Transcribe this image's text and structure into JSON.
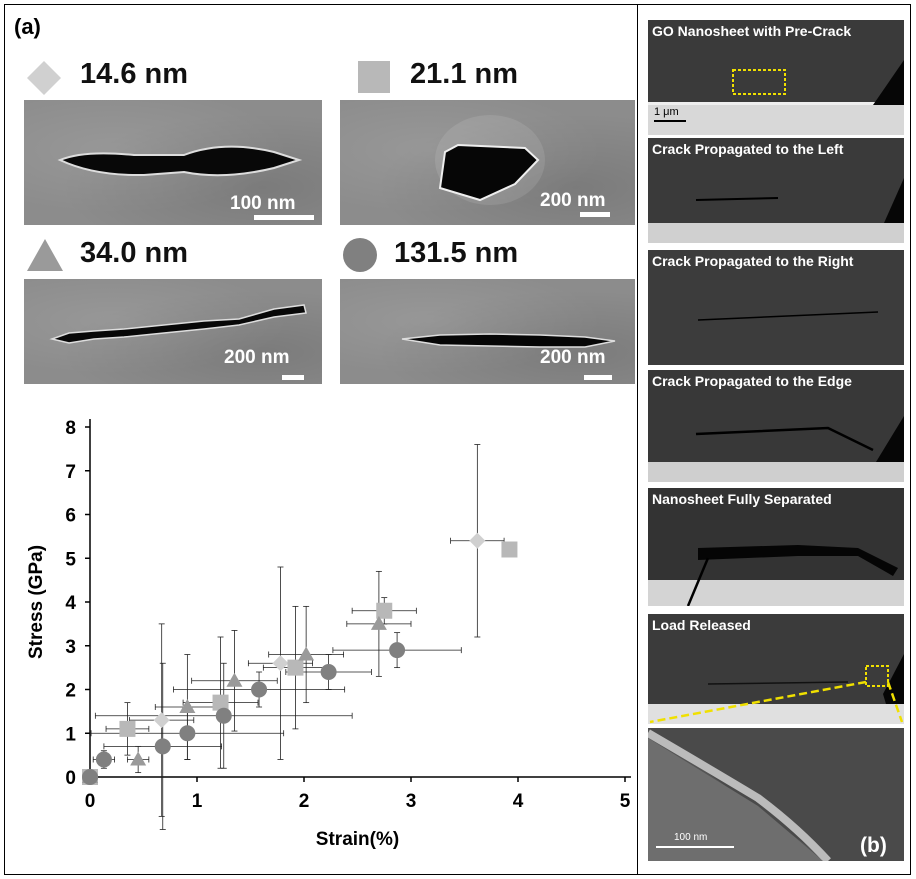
{
  "panel_a": {
    "label": "(a)",
    "images": [
      {
        "marker": "diamond",
        "thickness": "14.6 nm",
        "scale": "100 nm"
      },
      {
        "marker": "square",
        "thickness": "21.1 nm",
        "scale": "200 nm"
      },
      {
        "marker": "triangle",
        "thickness": "34.0 nm",
        "scale": "200 nm"
      },
      {
        "marker": "circle",
        "thickness": "131.5 nm",
        "scale": "200 nm"
      }
    ]
  },
  "panel_b": {
    "label": "(b)",
    "frames": [
      "GO Nanosheet with Pre-Crack",
      "Crack Propagated to the Left",
      "Crack Propagated to the Right",
      "Crack Propagated to the Edge",
      "Nanosheet Fully Separated",
      "Load Released",
      ""
    ],
    "scale_top": "1 μm",
    "scale_zoom": "100 nm"
  },
  "colors": {
    "diamond": "#d0d0d0",
    "square": "#b8b8b8",
    "triangle": "#9a9a9a",
    "circle": "#808080",
    "highlight": "#f0e000"
  },
  "chart_data": {
    "type": "scatter",
    "xlabel": "Strain(%)",
    "ylabel": "Stress (GPa)",
    "xlim": [
      0,
      5
    ],
    "ylim": [
      0,
      8
    ],
    "xticks": [
      "0",
      "1",
      "2",
      "3",
      "4",
      "5"
    ],
    "yticks": [
      "0",
      "1",
      "2",
      "3",
      "4",
      "5",
      "6",
      "7",
      "8"
    ],
    "grid": false,
    "series": [
      {
        "name": "14.6 nm",
        "marker": "diamond",
        "points": [
          [
            0.0,
            0.0,
            0.0,
            0.0
          ],
          [
            0.67,
            1.3,
            0.3,
            2.2
          ],
          [
            1.78,
            2.6,
            0.3,
            2.2
          ],
          [
            3.62,
            5.4,
            0.25,
            2.2
          ]
        ]
      },
      {
        "name": "21.1 nm",
        "marker": "square",
        "points": [
          [
            0.0,
            0.0,
            0.0,
            0.0
          ],
          [
            0.35,
            1.1,
            0.2,
            0.6
          ],
          [
            1.22,
            1.7,
            0.35,
            1.5
          ],
          [
            1.92,
            2.5,
            0.3,
            1.4
          ],
          [
            2.75,
            3.8,
            0.3,
            0.3
          ],
          [
            3.92,
            5.2,
            0.0,
            0.0
          ]
        ]
      },
      {
        "name": "34.0 nm",
        "marker": "triangle",
        "points": [
          [
            0.0,
            0.0,
            0.0,
            0.0
          ],
          [
            0.45,
            0.4,
            0.1,
            0.3
          ],
          [
            0.91,
            1.6,
            0.3,
            1.2
          ],
          [
            1.35,
            2.2,
            0.4,
            1.15
          ],
          [
            2.02,
            2.8,
            0.35,
            1.1
          ],
          [
            2.7,
            3.5,
            0.3,
            1.2
          ]
        ]
      },
      {
        "name": "131.5 nm",
        "marker": "circle",
        "points": [
          [
            0.0,
            0.0,
            0.0,
            0.0
          ],
          [
            0.13,
            0.4,
            0.1,
            0.2
          ],
          [
            0.68,
            0.7,
            0.55,
            1.9
          ],
          [
            0.91,
            1.0,
            0.9,
            0.6
          ],
          [
            1.25,
            1.4,
            1.2,
            1.2
          ],
          [
            1.58,
            2.0,
            0.8,
            0.4
          ],
          [
            2.23,
            2.4,
            0.4,
            0.4
          ],
          [
            2.87,
            2.9,
            0.6,
            0.4
          ]
        ]
      }
    ]
  }
}
